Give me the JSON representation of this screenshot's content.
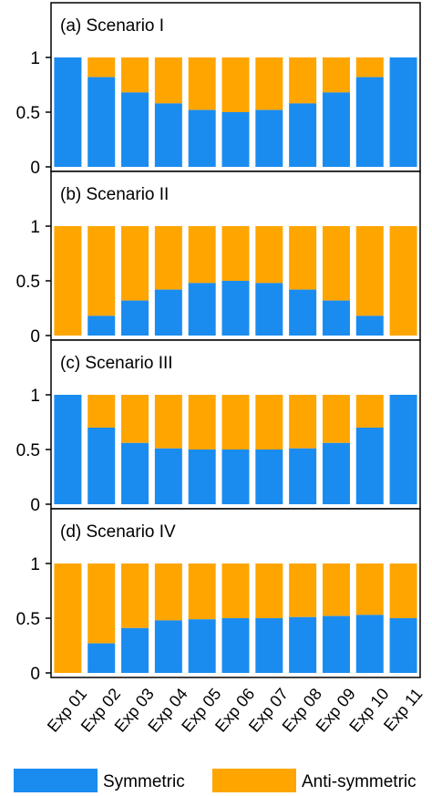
{
  "chart_data": {
    "type": "bar",
    "stacked": true,
    "categories": [
      "Exp 01",
      "Exp 02",
      "Exp 03",
      "Exp 04",
      "Exp 05",
      "Exp 06",
      "Exp 07",
      "Exp 08",
      "Exp 09",
      "Exp 10",
      "Exp 11"
    ],
    "ylim": [
      0,
      1
    ],
    "yticks": [
      "0",
      "0.5",
      "1"
    ],
    "grid": false,
    "legend_position": "bottom",
    "legend": [
      {
        "name": "Symmetric",
        "color": "#1a8cf0"
      },
      {
        "name": "Anti-symmetric",
        "color": "#ffa500"
      }
    ],
    "panels": [
      {
        "title": "(a) Scenario I",
        "symmetric": [
          1.0,
          0.82,
          0.68,
          0.58,
          0.52,
          0.5,
          0.52,
          0.58,
          0.68,
          0.82,
          1.0
        ]
      },
      {
        "title": "(b) Scenario II",
        "symmetric": [
          0.0,
          0.18,
          0.32,
          0.42,
          0.48,
          0.5,
          0.48,
          0.42,
          0.32,
          0.18,
          0.0
        ]
      },
      {
        "title": "(c) Scenario III",
        "symmetric": [
          1.0,
          0.7,
          0.56,
          0.51,
          0.5,
          0.5,
          0.5,
          0.51,
          0.56,
          0.7,
          1.0
        ]
      },
      {
        "title": "(d) Scenario IV",
        "symmetric": [
          0.0,
          0.27,
          0.41,
          0.48,
          0.49,
          0.5,
          0.5,
          0.51,
          0.52,
          0.53,
          0.5
        ]
      }
    ]
  }
}
